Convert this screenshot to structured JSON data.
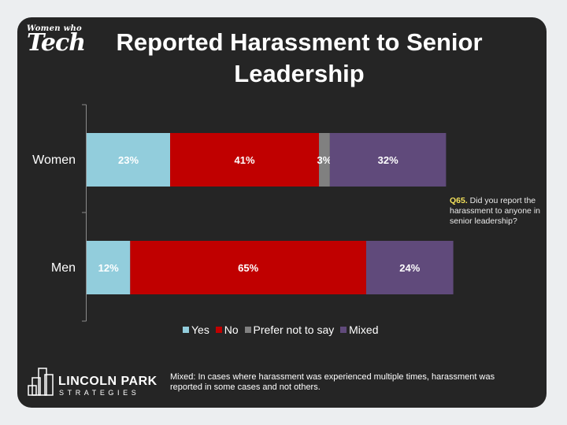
{
  "logo": {
    "line1": "Women who",
    "line2": "Tech"
  },
  "chart_data": {
    "type": "bar",
    "orientation": "horizontal",
    "stacked": true,
    "title": "Reported Harassment to Senior Leadership",
    "categories": [
      "Women",
      "Men"
    ],
    "series": [
      {
        "name": "Yes",
        "color": "#92cddc",
        "values": [
          23,
          12
        ]
      },
      {
        "name": "No",
        "color": "#c00000",
        "values": [
          41,
          65
        ]
      },
      {
        "name": "Prefer not to say",
        "color": "#808080",
        "values": [
          3,
          0
        ]
      },
      {
        "name": "Mixed",
        "color": "#604a7b",
        "values": [
          32,
          24
        ]
      }
    ],
    "xlim": [
      0,
      100
    ],
    "legend_position": "bottom",
    "label_color": "#ffffff"
  },
  "note": {
    "bold": "Q65.",
    "text": " Did you report the harassment to anyone in senior leadership?"
  },
  "footer": {
    "brand_name": "LINCOLN PARK",
    "brand_sub": "STRATEGIES",
    "footnote": "Mixed: In cases where harassment was experienced multiple times, harassment was reported in some cases and not others."
  }
}
